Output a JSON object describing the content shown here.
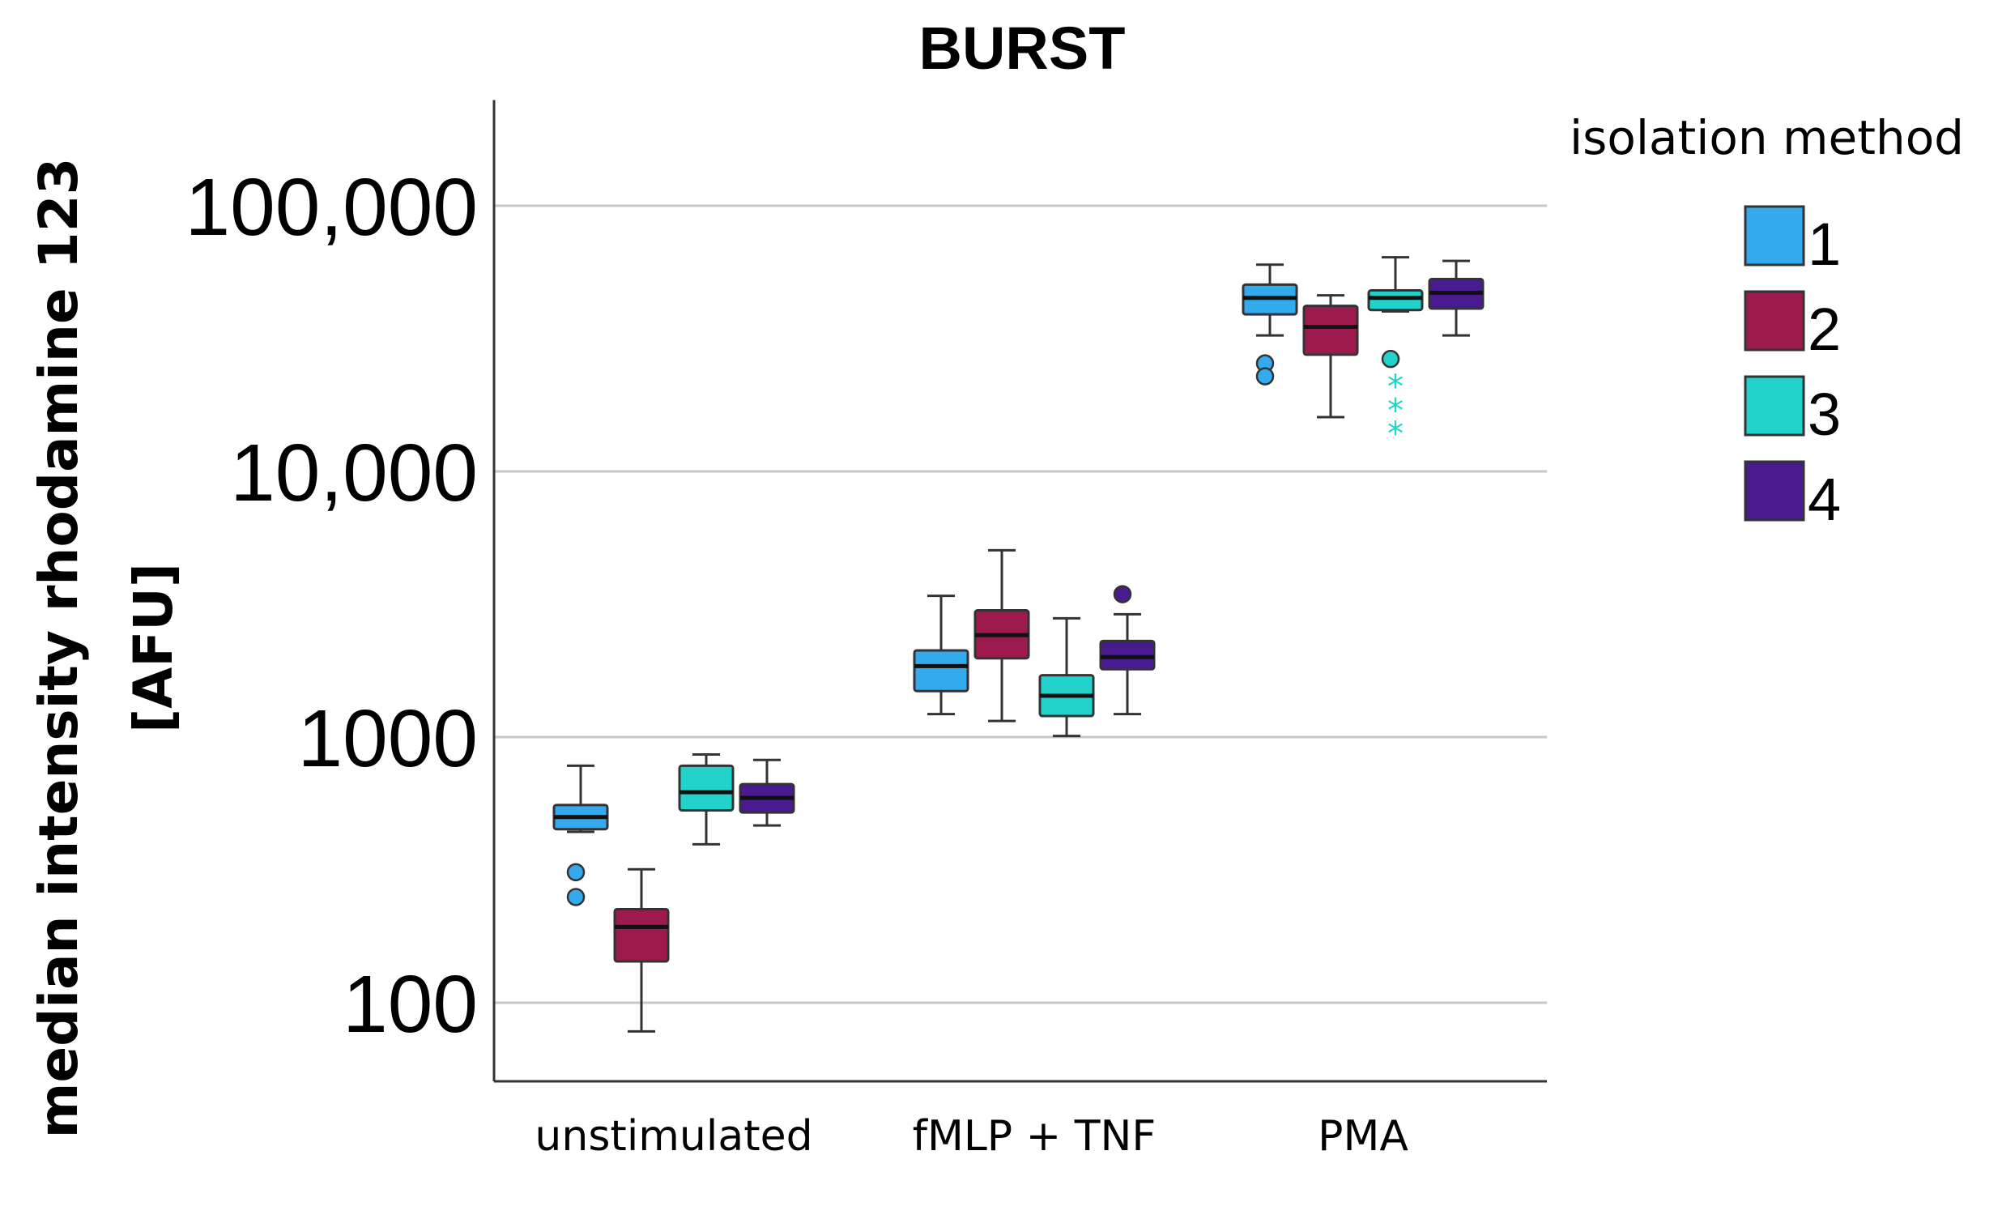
{
  "chart_data": {
    "type": "box",
    "title": "BURST",
    "ylabel_line1": "median intensity rhodamine 123",
    "ylabel_line2": "[AFU]",
    "xlabel": "",
    "y_scale": "log",
    "ylim": [
      60,
      250000
    ],
    "y_ticks": [
      100,
      1000,
      10000,
      100000
    ],
    "y_tick_labels": [
      "100",
      "1000",
      "10,000",
      "100,000"
    ],
    "grid": "horizontal",
    "categories": [
      "unstimulated",
      "fMLP + TNF",
      "PMA"
    ],
    "legend": {
      "title": "isolation method",
      "placement": "right"
    },
    "series": [
      {
        "name": "1",
        "color": "#33aaee",
        "boxes": [
          {
            "min": 440,
            "q1": 450,
            "median": 500,
            "q3": 555,
            "max": 780,
            "outliers": [
              310,
              250
            ],
            "extremes": []
          },
          {
            "min": 1220,
            "q1": 1490,
            "median": 1850,
            "q3": 2120,
            "max": 3400,
            "outliers": [],
            "extremes": []
          },
          {
            "min": 32500,
            "q1": 39000,
            "median": 45000,
            "q3": 50500,
            "max": 60000,
            "outliers": [
              25500,
              22800
            ],
            "extremes": []
          }
        ]
      },
      {
        "name": "2",
        "color": "#9c1a4e",
        "boxes": [
          {
            "min": 78,
            "q1": 143,
            "median": 193,
            "q3": 225,
            "max": 318,
            "outliers": [],
            "extremes": []
          },
          {
            "min": 1150,
            "q1": 1980,
            "median": 2420,
            "q3": 3000,
            "max": 5050,
            "outliers": [],
            "extremes": []
          },
          {
            "min": 16000,
            "q1": 27500,
            "median": 35000,
            "q3": 42000,
            "max": 46000,
            "outliers": [],
            "extremes": []
          }
        ]
      },
      {
        "name": "3",
        "color": "#22d3cc",
        "boxes": [
          {
            "min": 395,
            "q1": 530,
            "median": 620,
            "q3": 780,
            "max": 860,
            "outliers": [],
            "extremes": []
          },
          {
            "min": 1010,
            "q1": 1200,
            "median": 1430,
            "q3": 1710,
            "max": 2800,
            "outliers": [],
            "extremes": []
          },
          {
            "min": 40000,
            "q1": 40500,
            "median": 45000,
            "q3": 48000,
            "max": 64000,
            "outliers": [
              26500
            ],
            "extremes": [
              21500,
              17500,
              14300
            ]
          }
        ]
      },
      {
        "name": "4",
        "color": "#4a1a90",
        "boxes": [
          {
            "min": 465,
            "q1": 520,
            "median": 590,
            "q3": 665,
            "max": 820,
            "outliers": [],
            "extremes": []
          },
          {
            "min": 1220,
            "q1": 1800,
            "median": 2000,
            "q3": 2300,
            "max": 2900,
            "outliers": [
              3450
            ],
            "extremes": []
          },
          {
            "min": 32500,
            "q1": 41000,
            "median": 47000,
            "q3": 53000,
            "max": 62000,
            "outliers": [],
            "extremes": []
          }
        ]
      }
    ]
  }
}
